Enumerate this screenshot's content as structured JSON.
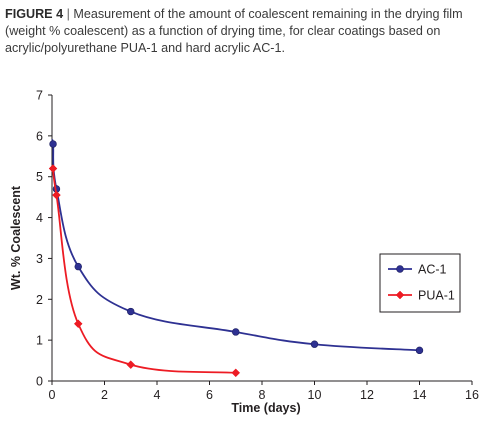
{
  "caption": {
    "figure_label": "FIGURE 4",
    "separator": "|",
    "text": "Measurement of the amount of coalescent remaining in the drying film (weight % coalescent) as a function of drying time, for clear coatings based on acrylic/polyurethane PUA-1 and hard acrylic AC-1."
  },
  "chart_data": {
    "type": "line",
    "title": "",
    "xlabel": "Time (days)",
    "ylabel": "Wt. % Coalescent",
    "xlim": [
      0,
      16
    ],
    "ylim": [
      0,
      7
    ],
    "xticks": [
      0,
      2,
      4,
      6,
      8,
      10,
      12,
      14,
      16
    ],
    "yticks": [
      0,
      1,
      2,
      3,
      4,
      5,
      6,
      7
    ],
    "grid": false,
    "legend_placement": "right",
    "series": [
      {
        "name": "AC-1",
        "color": "#2e3192",
        "marker": "circle",
        "x": [
          0,
          0.04,
          0.17,
          1,
          3,
          7,
          10,
          14
        ],
        "y": [
          5.8,
          5.8,
          4.7,
          2.8,
          1.7,
          1.2,
          0.9,
          0.75
        ]
      },
      {
        "name": "PUA-1",
        "color": "#ed1c24",
        "marker": "diamond",
        "x": [
          0,
          0.04,
          0.17,
          1,
          3,
          7
        ],
        "y": [
          5.2,
          5.2,
          4.55,
          1.4,
          0.4,
          0.2
        ]
      }
    ]
  }
}
